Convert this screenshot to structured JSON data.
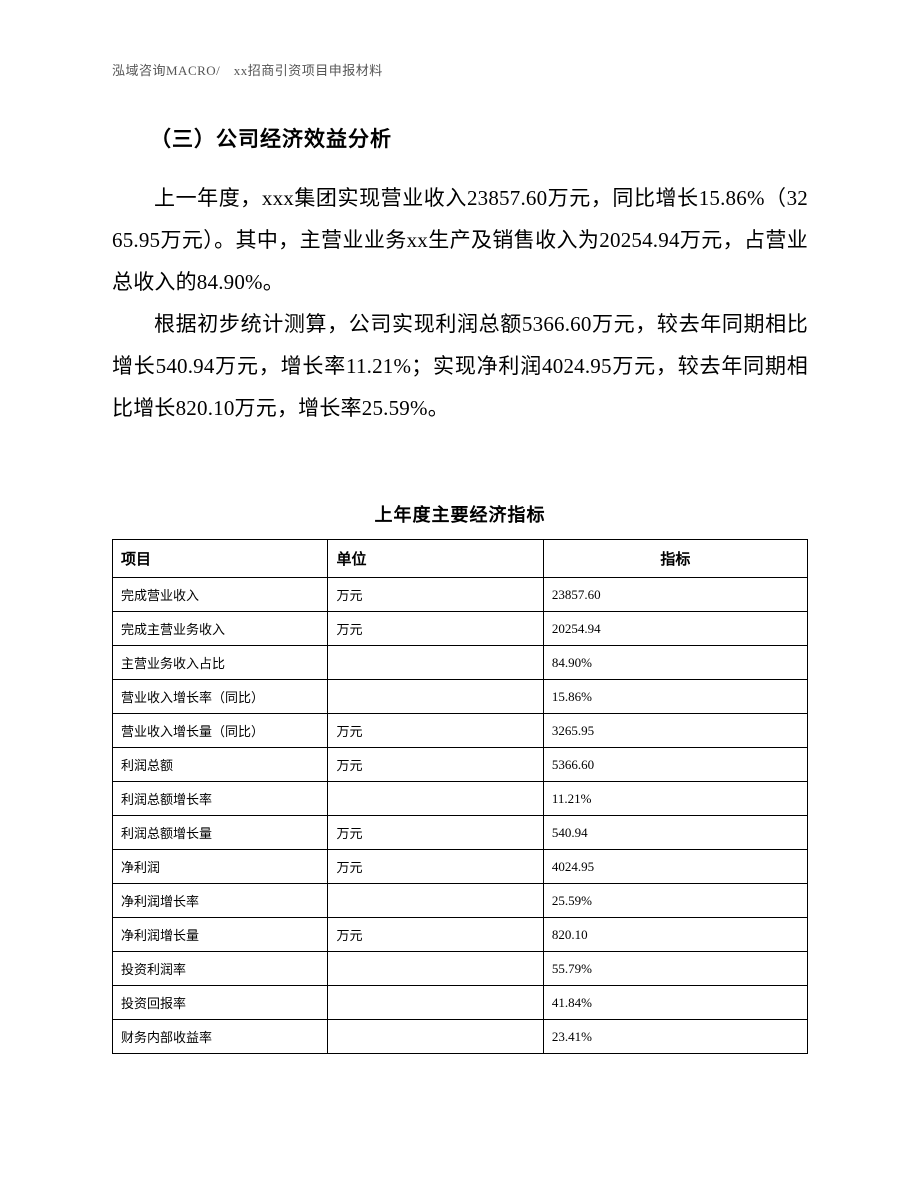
{
  "page_header": "泓域咨询MACRO/　xx招商引资项目申报材料",
  "section_heading": "（三）公司经济效益分析",
  "paragraph_1": "上一年度，xxx集团实现营业收入23857.60万元，同比增长15.86%（3265.95万元）。其中，主营业业务xx生产及销售收入为20254.94万元，占营业总收入的84.90%。",
  "paragraph_2": "根据初步统计测算，公司实现利润总额5366.60万元，较去年同期相比增长540.94万元，增长率11.21%；实现净利润4024.95万元，较去年同期相比增长820.10万元，增长率25.59%。",
  "table": {
    "title": "上年度主要经济指标",
    "columns": {
      "c0": "项目",
      "c1": "单位",
      "c2": "指标"
    },
    "rows": [
      {
        "item": "完成营业收入",
        "unit": "万元",
        "value": "23857.60"
      },
      {
        "item": "完成主营业务收入",
        "unit": "万元",
        "value": "20254.94"
      },
      {
        "item": "主营业务收入占比",
        "unit": "",
        "value": "84.90%"
      },
      {
        "item": "营业收入增长率（同比）",
        "unit": "",
        "value": "15.86%"
      },
      {
        "item": "营业收入增长量（同比）",
        "unit": "万元",
        "value": "3265.95"
      },
      {
        "item": "利润总额",
        "unit": "万元",
        "value": "5366.60"
      },
      {
        "item": "利润总额增长率",
        "unit": "",
        "value": "11.21%"
      },
      {
        "item": "利润总额增长量",
        "unit": "万元",
        "value": "540.94"
      },
      {
        "item": "净利润",
        "unit": "万元",
        "value": "4024.95"
      },
      {
        "item": "净利润增长率",
        "unit": "",
        "value": "25.59%"
      },
      {
        "item": "净利润增长量",
        "unit": "万元",
        "value": "820.10"
      },
      {
        "item": "投资利润率",
        "unit": "",
        "value": "55.79%"
      },
      {
        "item": "投资回报率",
        "unit": "",
        "value": "41.84%"
      },
      {
        "item": "财务内部收益率",
        "unit": "",
        "value": "23.41%"
      }
    ]
  }
}
